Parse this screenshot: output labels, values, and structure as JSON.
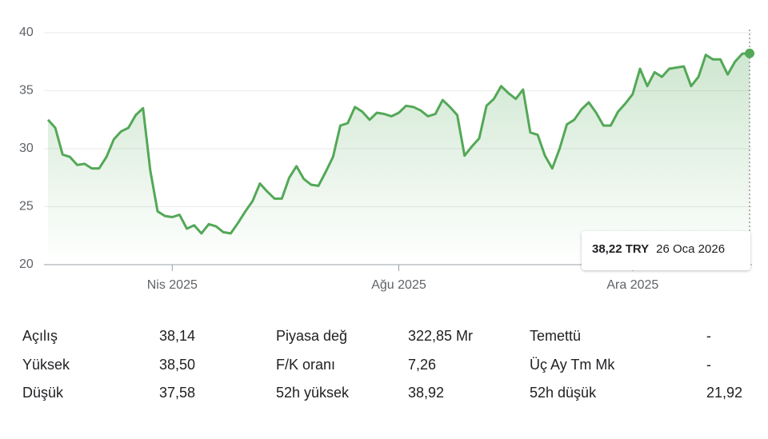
{
  "chart_data": {
    "type": "line",
    "color": "#53a857",
    "ylim": [
      20,
      40
    ],
    "yticks": [
      20,
      25,
      30,
      35,
      40
    ],
    "grid": true,
    "categories": [
      null,
      null,
      null,
      null,
      null,
      null,
      null,
      null,
      null,
      null,
      null,
      null,
      null,
      null,
      null,
      null,
      null,
      "Nis 2025",
      null,
      null,
      null,
      null,
      null,
      null,
      null,
      null,
      null,
      null,
      null,
      null,
      null,
      null,
      null,
      null,
      null,
      null,
      null,
      null,
      null,
      null,
      null,
      null,
      null,
      null,
      null,
      null,
      null,
      null,
      "Ağu 2025",
      null,
      null,
      null,
      null,
      null,
      null,
      null,
      null,
      null,
      null,
      null,
      null,
      null,
      null,
      null,
      null,
      null,
      null,
      null,
      null,
      null,
      null,
      null,
      null,
      null,
      null,
      null,
      null,
      null,
      null,
      null,
      "Ara 2025",
      null,
      null,
      null,
      null,
      null,
      null,
      null,
      null,
      null,
      null,
      null,
      null,
      null,
      null,
      null,
      null
    ],
    "values": [
      32.5,
      31.8,
      29.5,
      29.3,
      28.6,
      28.7,
      28.3,
      28.3,
      29.3,
      30.8,
      31.5,
      31.8,
      32.9,
      33.5,
      28.1,
      24.6,
      24.2,
      24.1,
      24.3,
      23.1,
      23.4,
      22.7,
      23.5,
      23.3,
      22.8,
      22.7,
      23.6,
      24.6,
      25.5,
      27.0,
      26.3,
      25.7,
      25.7,
      27.5,
      28.5,
      27.4,
      26.9,
      26.8,
      28.0,
      29.3,
      32.0,
      32.2,
      33.6,
      33.2,
      32.5,
      33.1,
      33.0,
      32.8,
      33.1,
      33.7,
      33.6,
      33.3,
      32.8,
      33.0,
      34.2,
      33.6,
      32.9,
      29.4,
      30.2,
      30.9,
      33.7,
      34.3,
      35.4,
      34.8,
      34.3,
      35.1,
      31.4,
      31.2,
      29.4,
      28.3,
      30.0,
      32.1,
      32.5,
      33.4,
      34.0,
      33.1,
      32.0,
      32.0,
      33.2,
      33.9,
      34.7,
      36.9,
      35.4,
      36.6,
      36.2,
      36.9,
      37.0,
      37.1,
      35.4,
      36.2,
      38.1,
      37.7,
      37.7,
      36.4,
      37.5,
      38.2,
      38.22
    ],
    "tooltip": {
      "price": "38,22 TRY",
      "date": "26 Oca 2026"
    }
  },
  "stats": [
    [
      [
        "Açılış",
        "38,14"
      ],
      [
        "Piyasa değ",
        "322,85 Mr"
      ],
      [
        "Temettü",
        "-"
      ]
    ],
    [
      [
        "Yüksek",
        "38,50"
      ],
      [
        "F/K oranı",
        "7,26"
      ],
      [
        "Üç Ay Tm Mk",
        "-"
      ]
    ],
    [
      [
        "Düşük",
        "37,58"
      ],
      [
        "52h yüksek",
        "38,92"
      ],
      [
        "52h düşük",
        "21,92"
      ]
    ]
  ]
}
